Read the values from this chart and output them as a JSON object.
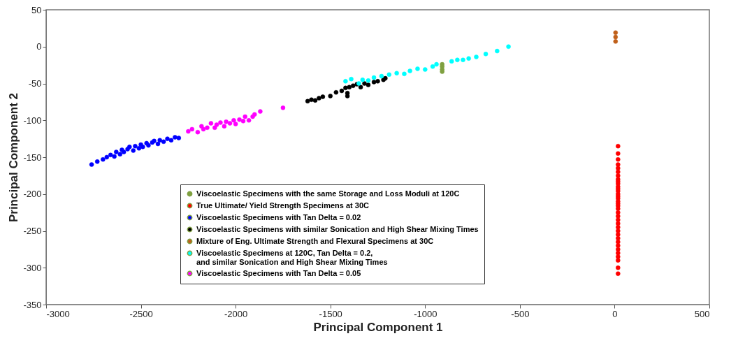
{
  "chart_data": {
    "type": "scatter",
    "xlabel": "Principal Component 1",
    "ylabel": "Principal Component 2",
    "xlim": [
      -3000,
      500
    ],
    "xticks": [
      -3000,
      -2500,
      -2000,
      -1500,
      -1000,
      -500,
      0,
      500
    ],
    "ylim": [
      -350,
      50
    ],
    "yticks": [
      -350,
      -300,
      -250,
      -200,
      -150,
      -100,
      -50,
      0,
      50
    ],
    "grid": false,
    "legend": "bottom",
    "marker": "circle",
    "series": [
      {
        "name": "Viscoelastic Specimens with the same Storage and Loss Moduli at 120C",
        "color": "#7fa040",
        "x": [
          -910,
          -910,
          -910,
          -910
        ],
        "values": [
          -24,
          -27,
          -31,
          -34
        ]
      },
      {
        "name": "True Ultimate/ Yield Strength Specimens at 30C",
        "color": "#ff0000",
        "x": [
          18,
          18,
          18,
          18,
          18,
          18,
          18,
          18,
          18,
          18,
          18,
          18,
          18,
          18,
          18,
          18,
          18,
          18,
          18,
          18,
          18,
          18,
          18,
          18,
          18,
          18,
          18,
          18,
          18,
          18,
          18,
          18,
          18,
          18,
          18,
          18
        ],
        "values": [
          -135,
          -145,
          -153,
          -160,
          -165,
          -170,
          -175,
          -180,
          -183,
          -186,
          -190,
          -193,
          -196,
          -200,
          -203,
          -206,
          -210,
          -213,
          -216,
          -220,
          -225,
          -230,
          -235,
          -240,
          -245,
          -250,
          -255,
          -260,
          -265,
          -270,
          -275,
          -280,
          -285,
          -290,
          -300,
          -308
        ]
      },
      {
        "name": "Viscoelastic Specimens with Tan Delta = 0.02",
        "color": "#0000ff",
        "x": [
          -2760,
          -2730,
          -2700,
          -2680,
          -2660,
          -2640,
          -2630,
          -2610,
          -2600,
          -2590,
          -2570,
          -2560,
          -2540,
          -2530,
          -2510,
          -2500,
          -2490,
          -2470,
          -2460,
          -2440,
          -2430,
          -2410,
          -2400,
          -2380,
          -2360,
          -2340,
          -2320,
          -2300
        ],
        "values": [
          -160,
          -156,
          -153,
          -150,
          -147,
          -149,
          -143,
          -146,
          -140,
          -143,
          -139,
          -136,
          -141,
          -135,
          -138,
          -133,
          -136,
          -131,
          -134,
          -130,
          -128,
          -132,
          -127,
          -129,
          -125,
          -127,
          -123,
          -124
        ]
      },
      {
        "name": "Viscoelastic Specimens with similar Sonication and High Shear Mixing Times",
        "color": "#000000",
        "x": [
          -1620,
          -1600,
          -1580,
          -1560,
          -1540,
          -1500,
          -1470,
          -1440,
          -1420,
          -1410,
          -1410,
          -1400,
          -1380,
          -1360,
          -1340,
          -1320,
          -1300,
          -1270,
          -1250,
          -1220,
          -1210
        ],
        "values": [
          -74,
          -72,
          -73,
          -70,
          -68,
          -67,
          -62,
          -60,
          -56,
          -63,
          -67,
          -55,
          -53,
          -51,
          -55,
          -50,
          -52,
          -48,
          -47,
          -45,
          -43
        ]
      },
      {
        "name": "Mixture of Eng. Ultimate Strength and Flexural Specimens at 30C",
        "color": "#c0601a",
        "x": [
          5,
          5,
          5
        ],
        "values": [
          7,
          13,
          19
        ]
      },
      {
        "name": "Viscoelastic Specimens at 120C, Tan Delta = 0.2,\nand similar Sonication and High Shear Mixing Times",
        "color": "#00ffff",
        "x": [
          -1420,
          -1390,
          -1350,
          -1330,
          -1300,
          -1270,
          -1230,
          -1190,
          -1150,
          -1110,
          -1080,
          -1040,
          -1000,
          -960,
          -940,
          -860,
          -830,
          -800,
          -770,
          -730,
          -680,
          -620,
          -560
        ],
        "values": [
          -47,
          -44,
          -50,
          -45,
          -46,
          -42,
          -40,
          -38,
          -36,
          -37,
          -33,
          -30,
          -31,
          -27,
          -24,
          -20,
          -18,
          -18,
          -16,
          -14,
          -10,
          -6,
          0
        ]
      },
      {
        "name": "Viscoelastic Specimens with Tan Delta = 0.05",
        "color": "#ff00ff",
        "x": [
          -2250,
          -2230,
          -2200,
          -2180,
          -2170,
          -2150,
          -2130,
          -2110,
          -2100,
          -2080,
          -2060,
          -2050,
          -2030,
          -2010,
          -2000,
          -1980,
          -1960,
          -1950,
          -1930,
          -1910,
          -1900,
          -1870,
          -1750
        ],
        "values": [
          -115,
          -112,
          -116,
          -108,
          -112,
          -110,
          -104,
          -110,
          -106,
          -103,
          -108,
          -102,
          -104,
          -100,
          -105,
          -99,
          -101,
          -95,
          -100,
          -95,
          -92,
          -88,
          -83
        ]
      }
    ]
  }
}
